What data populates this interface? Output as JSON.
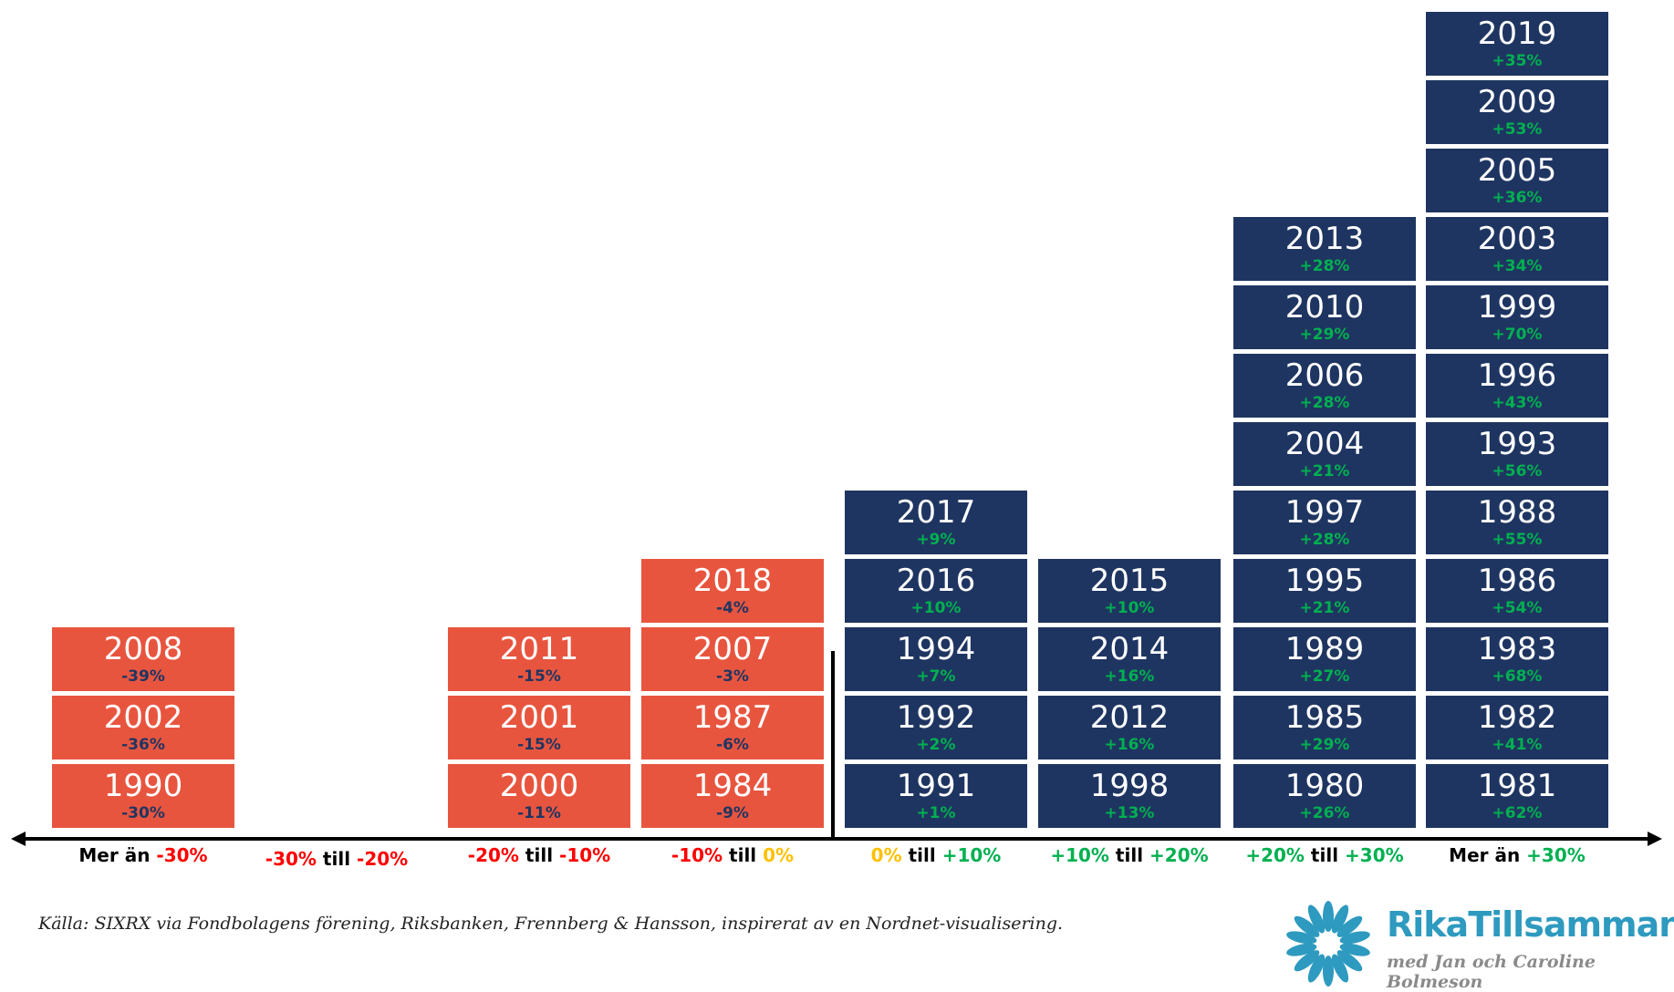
{
  "chart_data": {
    "type": "table",
    "title": "",
    "colors": {
      "negative_box": "#E8553F",
      "positive_box": "#1F3561",
      "green": "#00B050",
      "red": "#FF0000",
      "yellow": "#FFC000",
      "black": "#000000",
      "navy_text": "#1F3561"
    },
    "bins": [
      {
        "label": [
          {
            "t": "Mer än ",
            "c": "#000000"
          },
          {
            "t": "-30%",
            "c": "#FF0000"
          }
        ],
        "sign": "neg",
        "years": [
          {
            "year": "1990",
            "ret": "-30%"
          },
          {
            "year": "2002",
            "ret": "-36%"
          },
          {
            "year": "2008",
            "ret": "-39%"
          }
        ]
      },
      {
        "label": [
          {
            "t": "-30%",
            "c": "#FF0000"
          },
          {
            "t": " till ",
            "c": "#000000"
          },
          {
            "t": "-20%",
            "c": "#FF0000"
          }
        ],
        "sign": "neg",
        "years": []
      },
      {
        "label": [
          {
            "t": "-20%",
            "c": "#FF0000"
          },
          {
            "t": " till ",
            "c": "#000000"
          },
          {
            "t": "-10%",
            "c": "#FF0000"
          }
        ],
        "sign": "neg",
        "years": [
          {
            "year": "2000",
            "ret": "-11%"
          },
          {
            "year": "2001",
            "ret": "-15%"
          },
          {
            "year": "2011",
            "ret": "-15%"
          }
        ]
      },
      {
        "label": [
          {
            "t": "-10%",
            "c": "#FF0000"
          },
          {
            "t": " till ",
            "c": "#000000"
          },
          {
            "t": "0%",
            "c": "#FFC000"
          }
        ],
        "sign": "neg",
        "years": [
          {
            "year": "1984",
            "ret": "-9%"
          },
          {
            "year": "1987",
            "ret": "-6%"
          },
          {
            "year": "2007",
            "ret": "-3%"
          },
          {
            "year": "2018",
            "ret": "-4%"
          }
        ]
      },
      {
        "label": [
          {
            "t": "0%",
            "c": "#FFC000"
          },
          {
            "t": " till ",
            "c": "#000000"
          },
          {
            "t": "+10%",
            "c": "#00B050"
          }
        ],
        "sign": "pos",
        "years": [
          {
            "year": "1991",
            "ret": "+1%"
          },
          {
            "year": "1992",
            "ret": "+2%"
          },
          {
            "year": "1994",
            "ret": "+7%"
          },
          {
            "year": "2016",
            "ret": "+10%"
          },
          {
            "year": "2017",
            "ret": "+9%"
          }
        ]
      },
      {
        "label": [
          {
            "t": "+10%",
            "c": "#00B050"
          },
          {
            "t": " till ",
            "c": "#000000"
          },
          {
            "t": "+20%",
            "c": "#00B050"
          }
        ],
        "sign": "pos",
        "years": [
          {
            "year": "1998",
            "ret": "+13%"
          },
          {
            "year": "2012",
            "ret": "+16%"
          },
          {
            "year": "2014",
            "ret": "+16%"
          },
          {
            "year": "2015",
            "ret": "+10%"
          }
        ]
      },
      {
        "label": [
          {
            "t": "+20%",
            "c": "#00B050"
          },
          {
            "t": " till ",
            "c": "#000000"
          },
          {
            "t": "+30%",
            "c": "#00B050"
          }
        ],
        "sign": "pos",
        "years": [
          {
            "year": "1980",
            "ret": "+26%"
          },
          {
            "year": "1985",
            "ret": "+29%"
          },
          {
            "year": "1989",
            "ret": "+27%"
          },
          {
            "year": "1995",
            "ret": "+21%"
          },
          {
            "year": "1997",
            "ret": "+28%"
          },
          {
            "year": "2004",
            "ret": "+21%"
          },
          {
            "year": "2006",
            "ret": "+28%"
          },
          {
            "year": "2010",
            "ret": "+29%"
          },
          {
            "year": "2013",
            "ret": "+28%"
          }
        ]
      },
      {
        "label": [
          {
            "t": "Mer än ",
            "c": "#000000"
          },
          {
            "t": "+30%",
            "c": "#00B050"
          }
        ],
        "sign": "pos",
        "years": [
          {
            "year": "1981",
            "ret": "+62%"
          },
          {
            "year": "1982",
            "ret": "+41%"
          },
          {
            "year": "1983",
            "ret": "+68%"
          },
          {
            "year": "1986",
            "ret": "+54%"
          },
          {
            "year": "1988",
            "ret": "+55%"
          },
          {
            "year": "1993",
            "ret": "+56%"
          },
          {
            "year": "1996",
            "ret": "+43%"
          },
          {
            "year": "1999",
            "ret": "+70%"
          },
          {
            "year": "2003",
            "ret": "+34%"
          },
          {
            "year": "2005",
            "ret": "+36%"
          },
          {
            "year": "2009",
            "ret": "+53%"
          },
          {
            "year": "2019",
            "ret": "+35%"
          }
        ]
      }
    ]
  },
  "source": "Källa: SIXRX via Fondbolagens förening, Riksbanken, Frennberg & Hansson, inspirerat av en Nordnet-visualisering.",
  "logo": {
    "name": "RikaTillsammans",
    "tagline": "med Jan och Caroline Bolmeson",
    "color": "#2E9ABF"
  }
}
